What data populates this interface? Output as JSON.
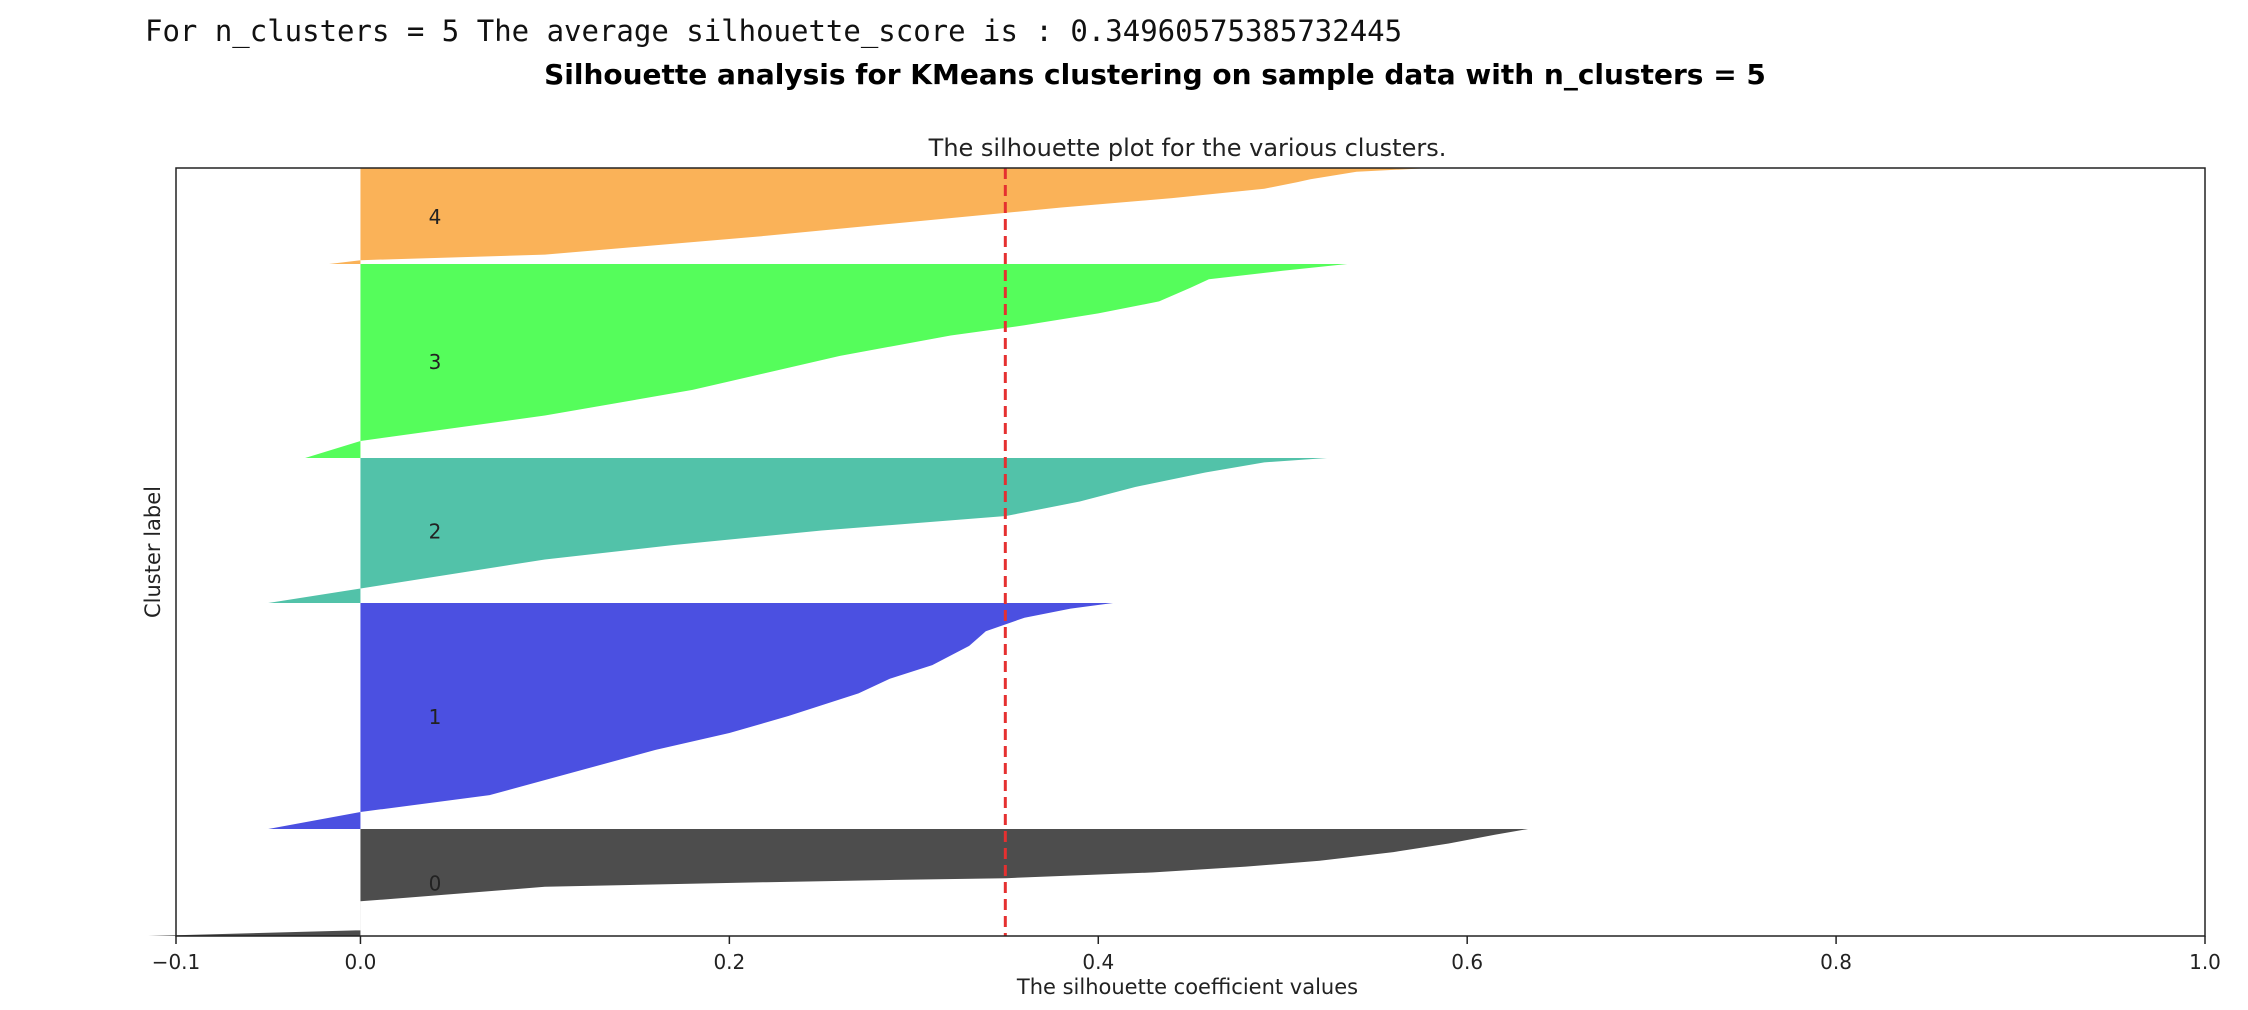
{
  "console_output": "For n_clusters = 5 The average silhouette_score is : 0.34960575385732445",
  "suptitle": "Silhouette analysis for KMeans clustering on sample data with n_clusters = 5",
  "chart_data": {
    "type": "area",
    "title": "The silhouette plot for the various clusters.",
    "xlabel": "The silhouette coefficient values",
    "ylabel": "Cluster label",
    "xlim": [
      -0.1,
      1.0
    ],
    "xticks": [
      -0.1,
      0.0,
      0.2,
      0.4,
      0.6,
      0.8,
      1.0
    ],
    "xtick_labels": [
      "−0.1",
      "0.0",
      "0.2",
      "0.4",
      "0.6",
      "0.8",
      "1.0"
    ],
    "grid": false,
    "average_silhouette_score": 0.34960575385732445,
    "average_line_color": "#e53030",
    "series": [
      {
        "label": "0",
        "color": "#4d4d4d",
        "profile": [
          [
            0,
            -0.115
          ],
          [
            0.1,
            0.0
          ],
          [
            0.3,
            0.0
          ],
          [
            0.6,
            0.0
          ],
          [
            0.85,
            0.1
          ],
          [
            0.93,
            0.22
          ],
          [
            0.97,
            0.29
          ],
          [
            1.0,
            0.35
          ],
          [
            1.05,
            0.39
          ],
          [
            1.1,
            0.43
          ],
          [
            1.2,
            0.48
          ],
          [
            1.3,
            0.52
          ],
          [
            1.45,
            0.56
          ],
          [
            1.6,
            0.59
          ],
          [
            1.75,
            0.615
          ],
          [
            1.85,
            0.633
          ]
        ]
      },
      {
        "label": "1",
        "color": "#4b50e1",
        "profile": [
          [
            0,
            -0.05
          ],
          [
            0.15,
            0.0
          ],
          [
            0.3,
            0.07
          ],
          [
            0.5,
            0.115
          ],
          [
            0.7,
            0.16
          ],
          [
            0.85,
            0.2
          ],
          [
            1.0,
            0.232
          ],
          [
            1.2,
            0.27
          ],
          [
            1.33,
            0.287
          ],
          [
            1.45,
            0.31
          ],
          [
            1.62,
            0.33
          ],
          [
            1.75,
            0.339
          ],
          [
            1.87,
            0.36
          ],
          [
            1.95,
            0.385
          ],
          [
            2.0,
            0.408
          ]
        ]
      },
      {
        "label": "2",
        "color": "#52c2a9",
        "profile": [
          [
            0,
            -0.05
          ],
          [
            0.1,
            0.0
          ],
          [
            0.18,
            0.04
          ],
          [
            0.3,
            0.1
          ],
          [
            0.4,
            0.17
          ],
          [
            0.5,
            0.25
          ],
          [
            0.6,
            0.35
          ],
          [
            0.7,
            0.39
          ],
          [
            0.8,
            0.42
          ],
          [
            0.9,
            0.458
          ],
          [
            0.97,
            0.49
          ],
          [
            1.0,
            0.524
          ]
        ]
      },
      {
        "label": "3",
        "color": "#55fd5b",
        "profile": [
          [
            0,
            -0.03
          ],
          [
            0.1,
            0.0
          ],
          [
            0.25,
            0.1
          ],
          [
            0.4,
            0.18
          ],
          [
            0.6,
            0.26
          ],
          [
            0.72,
            0.32
          ],
          [
            0.78,
            0.36
          ],
          [
            0.85,
            0.4
          ],
          [
            0.92,
            0.433
          ],
          [
            1.0,
            0.45
          ],
          [
            1.05,
            0.46
          ],
          [
            1.1,
            0.5
          ],
          [
            1.14,
            0.535
          ]
        ]
      },
      {
        "label": "4",
        "color": "#fab258",
        "profile": [
          [
            0,
            -0.017
          ],
          [
            0.04,
            0.0
          ],
          [
            0.1,
            0.1
          ],
          [
            0.3,
            0.22
          ],
          [
            0.45,
            0.3
          ],
          [
            0.6,
            0.38
          ],
          [
            0.7,
            0.44
          ],
          [
            0.8,
            0.49
          ],
          [
            0.87,
            0.508
          ],
          [
            0.9,
            0.515
          ],
          [
            0.98,
            0.54
          ],
          [
            1.02,
            0.58
          ]
        ]
      }
    ]
  }
}
